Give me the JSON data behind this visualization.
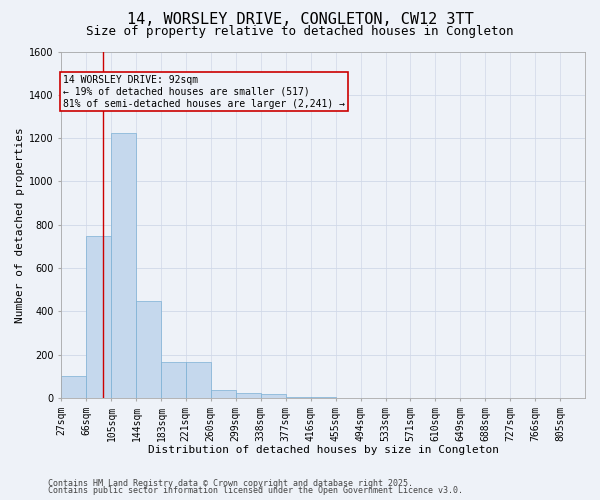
{
  "title": "14, WORSLEY DRIVE, CONGLETON, CW12 3TT",
  "subtitle": "Size of property relative to detached houses in Congleton",
  "xlabel": "Distribution of detached houses by size in Congleton",
  "ylabel": "Number of detached properties",
  "categories": [
    "27sqm",
    "66sqm",
    "105sqm",
    "144sqm",
    "183sqm",
    "221sqm",
    "260sqm",
    "299sqm",
    "338sqm",
    "377sqm",
    "416sqm",
    "455sqm",
    "494sqm",
    "533sqm",
    "571sqm",
    "610sqm",
    "649sqm",
    "688sqm",
    "727sqm",
    "766sqm",
    "805sqm"
  ],
  "values": [
    100,
    750,
    1225,
    450,
    165,
    165,
    35,
    25,
    20,
    5,
    3,
    2,
    1,
    1,
    0,
    0,
    0,
    0,
    0,
    0,
    0
  ],
  "bar_color": "#c5d8ed",
  "bar_edge_color": "#7bafd4",
  "grid_color": "#d0d8e8",
  "background_color": "#eef2f8",
  "annotation_box_color": "#cc0000",
  "annotation_line1": "14 WORSLEY DRIVE: 92sqm",
  "annotation_line2": "← 19% of detached houses are smaller (517)",
  "annotation_line3": "81% of semi-detached houses are larger (2,241) →",
  "red_line_x": 92,
  "bin_edges": [
    27,
    66,
    105,
    144,
    183,
    221,
    260,
    299,
    338,
    377,
    416,
    455,
    494,
    533,
    571,
    610,
    649,
    688,
    727,
    766,
    805,
    844
  ],
  "ylim": [
    0,
    1600
  ],
  "yticks": [
    0,
    200,
    400,
    600,
    800,
    1000,
    1200,
    1400,
    1600
  ],
  "footnote1": "Contains HM Land Registry data © Crown copyright and database right 2025.",
  "footnote2": "Contains public sector information licensed under the Open Government Licence v3.0.",
  "title_fontsize": 11,
  "subtitle_fontsize": 9,
  "axis_label_fontsize": 8,
  "tick_fontsize": 7,
  "annotation_fontsize": 7,
  "footnote_fontsize": 6
}
